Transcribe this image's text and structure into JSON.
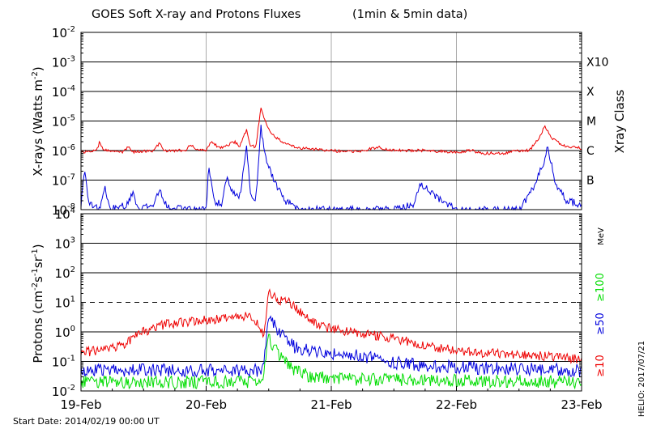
{
  "title": "GOES Soft X-ray and Protons Fluxes",
  "title_note": "(1min & 5min data)",
  "start_date_text": "Start Date: 2014/02/19 00:00 UT",
  "credit_text": "HELIO: 2017/07/21",
  "colors": {
    "red": "#ee0000",
    "blue": "#0000dd",
    "green": "#00dd00",
    "grid": "#000000",
    "day_line": "#aaaaaa"
  },
  "chart_data": [
    {
      "type": "line",
      "panel": "xray",
      "ylabel_parts": [
        "X-rays (Watts m",
        "-2",
        ")"
      ],
      "yscale": "log",
      "ylim": [
        1e-08,
        0.01
      ],
      "yticks": [
        {
          "mant": "10",
          "exp": "-2",
          "value": 0.01
        },
        {
          "mant": "10",
          "exp": "-3",
          "value": 0.001
        },
        {
          "mant": "10",
          "exp": "-4",
          "value": 0.0001
        },
        {
          "mant": "10",
          "exp": "-5",
          "value": 1e-05
        },
        {
          "mant": "10",
          "exp": "-6",
          "value": 1e-06
        },
        {
          "mant": "10",
          "exp": "-7",
          "value": 1e-07
        },
        {
          "mant": "10",
          "exp": "-8",
          "value": 1e-08
        }
      ],
      "right_axis_title": "Xray Class",
      "class_labels": [
        {
          "label": "X10",
          "value": 0.001
        },
        {
          "label": "X",
          "value": 0.0001
        },
        {
          "label": "M",
          "value": 1e-05
        },
        {
          "label": "C",
          "value": 1e-06
        },
        {
          "label": "B",
          "value": 1e-07
        }
      ],
      "xlim": [
        "2014-02-19",
        "2014-02-23"
      ],
      "series": [
        {
          "color": "red",
          "points": [
            [
              "2014-02-19 00:00",
              9e-07
            ],
            [
              "2014-02-19 03:00",
              1e-06
            ],
            [
              "2014-02-19 03:30",
              1.8e-06
            ],
            [
              "2014-02-19 04:30",
              1e-06
            ],
            [
              "2014-02-19 08:00",
              9e-07
            ],
            [
              "2014-02-19 09:00",
              1.3e-06
            ],
            [
              "2014-02-19 10:00",
              9e-07
            ],
            [
              "2014-02-19 14:00",
              1e-06
            ],
            [
              "2014-02-19 15:00",
              1.8e-06
            ],
            [
              "2014-02-19 16:00",
              1e-06
            ],
            [
              "2014-02-19 20:00",
              1e-06
            ],
            [
              "2014-02-19 21:00",
              1.5e-06
            ],
            [
              "2014-02-19 22:30",
              1e-06
            ],
            [
              "2014-02-20 00:00",
              1e-06
            ],
            [
              "2014-02-20 01:00",
              2.2e-06
            ],
            [
              "2014-02-20 02:30",
              1.2e-06
            ],
            [
              "2014-02-20 04:00",
              1.5e-06
            ],
            [
              "2014-02-20 05:30",
              2e-06
            ],
            [
              "2014-02-20 06:30",
              1.4e-06
            ],
            [
              "2014-02-20 07:00",
              2.5e-06
            ],
            [
              "2014-02-20 07:45",
              5e-06
            ],
            [
              "2014-02-20 08:30",
              1.5e-06
            ],
            [
              "2014-02-20 09:30",
              1.3e-06
            ],
            [
              "2014-02-20 10:30",
              3e-05
            ],
            [
              "2014-02-20 11:30",
              8e-06
            ],
            [
              "2014-02-20 13:00",
              3e-06
            ],
            [
              "2014-02-20 15:00",
              1.8e-06
            ],
            [
              "2014-02-20 18:00",
              1.2e-06
            ],
            [
              "2014-02-21 00:00",
              1e-06
            ],
            [
              "2014-02-21 03:00",
              9e-07
            ],
            [
              "2014-02-21 06:00",
              1e-06
            ],
            [
              "2014-02-21 09:00",
              1.3e-06
            ],
            [
              "2014-02-21 12:00",
              1e-06
            ],
            [
              "2014-02-21 18:00",
              1e-06
            ],
            [
              "2014-02-22 00:00",
              9e-07
            ],
            [
              "2014-02-22 03:00",
              1e-06
            ],
            [
              "2014-02-22 05:00",
              8e-07
            ],
            [
              "2014-02-22 09:00",
              8e-07
            ],
            [
              "2014-02-22 11:00",
              1e-06
            ],
            [
              "2014-02-22 14:00",
              1e-06
            ],
            [
              "2014-02-22 16:00",
              3e-06
            ],
            [
              "2014-02-22 17:00",
              7e-06
            ],
            [
              "2014-02-22 18:00",
              3e-06
            ],
            [
              "2014-02-22 20:00",
              1.6e-06
            ],
            [
              "2014-02-22 22:00",
              1.3e-06
            ],
            [
              "2014-02-23 00:00",
              1.2e-06
            ]
          ]
        },
        {
          "color": "blue",
          "points": [
            [
              "2014-02-19 00:00",
              1.5e-08
            ],
            [
              "2014-02-19 00:45",
              2.5e-07
            ],
            [
              "2014-02-19 01:30",
              1.5e-08
            ],
            [
              "2014-02-19 03:30",
              1e-08
            ],
            [
              "2014-02-19 04:30",
              6e-08
            ],
            [
              "2014-02-19 05:30",
              1e-08
            ],
            [
              "2014-02-19 09:00",
              1.5e-08
            ],
            [
              "2014-02-19 10:00",
              4e-08
            ],
            [
              "2014-02-19 11:00",
              1e-08
            ],
            [
              "2014-02-19 14:00",
              1.5e-08
            ],
            [
              "2014-02-19 15:00",
              5e-08
            ],
            [
              "2014-02-19 16:30",
              1.2e-08
            ],
            [
              "2014-02-19 20:00",
              1e-08
            ],
            [
              "2014-02-20 00:00",
              1e-08
            ],
            [
              "2014-02-20 00:30",
              3e-07
            ],
            [
              "2014-02-20 01:30",
              2e-08
            ],
            [
              "2014-02-20 03:00",
              1.5e-08
            ],
            [
              "2014-02-20 04:00",
              1.5e-07
            ],
            [
              "2014-02-20 05:00",
              4e-08
            ],
            [
              "2014-02-20 06:30",
              3e-08
            ],
            [
              "2014-02-20 07:45",
              1.5e-06
            ],
            [
              "2014-02-20 08:30",
              3e-08
            ],
            [
              "2014-02-20 09:30",
              2e-08
            ],
            [
              "2014-02-20 10:30",
              6e-06
            ],
            [
              "2014-02-20 11:30",
              5e-07
            ],
            [
              "2014-02-20 13:00",
              1e-07
            ],
            [
              "2014-02-20 15:00",
              2e-08
            ],
            [
              "2014-02-20 18:00",
              1e-08
            ],
            [
              "2014-02-21 00:00",
              1e-08
            ],
            [
              "2014-02-21 12:00",
              1e-08
            ],
            [
              "2014-02-21 16:00",
              1.5e-08
            ],
            [
              "2014-02-21 17:00",
              8e-08
            ],
            [
              "2014-02-21 21:00",
              2e-08
            ],
            [
              "2014-02-22 00:00",
              1e-08
            ],
            [
              "2014-02-22 12:00",
              1e-08
            ],
            [
              "2014-02-22 14:00",
              3e-08
            ],
            [
              "2014-02-22 16:30",
              3e-07
            ],
            [
              "2014-02-22 17:30",
              1.2e-06
            ],
            [
              "2014-02-22 19:00",
              8e-08
            ],
            [
              "2014-02-22 21:00",
              2e-08
            ],
            [
              "2014-02-23 00:00",
              1.5e-08
            ]
          ]
        }
      ]
    },
    {
      "type": "line",
      "panel": "protons",
      "ylabel_parts": [
        "Protons (cm",
        "-2",
        "s",
        "-1",
        "sr",
        "-1",
        ")"
      ],
      "yscale": "log",
      "ylim": [
        0.01,
        10000
      ],
      "yticks": [
        {
          "mant": "10",
          "exp": "4",
          "value": 10000
        },
        {
          "mant": "10",
          "exp": "3",
          "value": 1000
        },
        {
          "mant": "10",
          "exp": "2",
          "value": 100
        },
        {
          "mant": "10",
          "exp": "1",
          "value": 10
        },
        {
          "mant": "10",
          "exp": "0",
          "value": 1
        },
        {
          "mant": "10",
          "exp": "-1",
          "value": 0.1
        },
        {
          "mant": "10",
          "exp": "-2",
          "value": 0.01
        }
      ],
      "threshold": 10,
      "energy_unit": "MeV",
      "energy_labels": [
        {
          "label": "≥100",
          "color": "green"
        },
        {
          "label": "≥50",
          "color": "blue"
        },
        {
          "label": "≥10",
          "color": "red"
        }
      ],
      "x_ticklabels": [
        "19-Feb",
        "20-Feb",
        "21-Feb",
        "22-Feb",
        "23-Feb"
      ],
      "xlim": [
        "2014-02-19",
        "2014-02-23"
      ],
      "series": [
        {
          "color": "red",
          "points": [
            [
              "2014-02-19 00:00",
              0.2
            ],
            [
              "2014-02-19 05:00",
              0.25
            ],
            [
              "2014-02-19 08:00",
              0.35
            ],
            [
              "2014-02-19 12:00",
              1.0
            ],
            [
              "2014-02-19 16:00",
              1.8
            ],
            [
              "2014-02-20 00:00",
              2.5
            ],
            [
              "2014-02-20 06:00",
              3.0
            ],
            [
              "2014-02-20 09:00",
              3.5
            ],
            [
              "2014-02-20 10:00",
              1.5
            ],
            [
              "2014-02-20 11:00",
              0.8
            ],
            [
              "2014-02-20 12:00",
              20
            ],
            [
              "2014-02-20 14:00",
              12
            ],
            [
              "2014-02-20 16:00",
              10
            ],
            [
              "2014-02-20 18:00",
              5
            ],
            [
              "2014-02-20 22:00",
              1.5
            ],
            [
              "2014-02-21 03:00",
              1.0
            ],
            [
              "2014-02-21 08:00",
              0.8
            ],
            [
              "2014-02-21 14:00",
              0.5
            ],
            [
              "2014-02-21 20:00",
              0.3
            ],
            [
              "2014-02-22 04:00",
              0.2
            ],
            [
              "2014-02-22 12:00",
              0.17
            ],
            [
              "2014-02-23 00:00",
              0.12
            ]
          ]
        },
        {
          "color": "blue",
          "points": [
            [
              "2014-02-19 00:00",
              0.05
            ],
            [
              "2014-02-20 00:00",
              0.05
            ],
            [
              "2014-02-20 10:00",
              0.05
            ],
            [
              "2014-02-20 11:00",
              0.07
            ],
            [
              "2014-02-20 12:00",
              3
            ],
            [
              "2014-02-20 14:00",
              0.9
            ],
            [
              "2014-02-20 17:00",
              0.3
            ],
            [
              "2014-02-20 22:00",
              0.2
            ],
            [
              "2014-02-21 06:00",
              0.15
            ],
            [
              "2014-02-21 12:00",
              0.09
            ],
            [
              "2014-02-21 20:00",
              0.07
            ],
            [
              "2014-02-22 04:00",
              0.06
            ],
            [
              "2014-02-23 00:00",
              0.05
            ]
          ]
        },
        {
          "color": "green",
          "points": [
            [
              "2014-02-19 00:00",
              0.02
            ],
            [
              "2014-02-20 10:00",
              0.02
            ],
            [
              "2014-02-20 11:00",
              0.04
            ],
            [
              "2014-02-20 12:00",
              0.6
            ],
            [
              "2014-02-20 13:00",
              0.3
            ],
            [
              "2014-02-20 16:00",
              0.06
            ],
            [
              "2014-02-20 20:00",
              0.03
            ],
            [
              "2014-02-21 03:00",
              0.025
            ],
            [
              "2014-02-23 00:00",
              0.02
            ]
          ]
        }
      ]
    }
  ]
}
